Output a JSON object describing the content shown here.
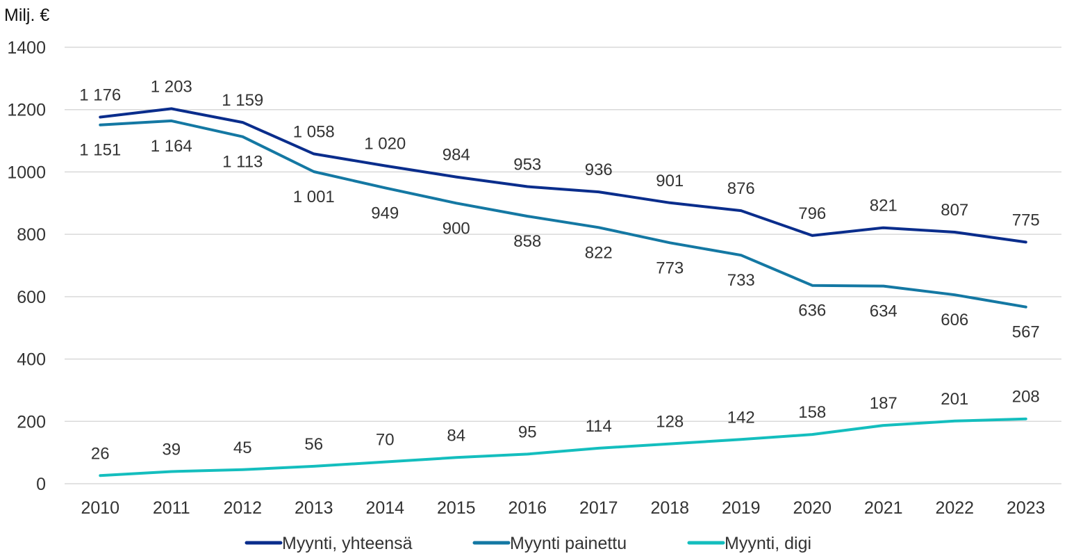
{
  "chart_data": {
    "type": "line",
    "unit_label": "Milj. €",
    "ylim": [
      0,
      1400
    ],
    "y_ticks": [
      0,
      200,
      400,
      600,
      800,
      1000,
      1200,
      1400
    ],
    "y_tick_labels": [
      "0",
      "200",
      "400",
      "600",
      "800",
      "1000",
      "1200",
      "1400"
    ],
    "categories": [
      "2010",
      "2011",
      "2012",
      "2013",
      "2014",
      "2015",
      "2016",
      "2017",
      "2018",
      "2019",
      "2020",
      "2021",
      "2022",
      "2023"
    ],
    "grid": true,
    "legend_position": "bottom",
    "series": [
      {
        "name": "Myynti, yhteensä",
        "color": "#0a2d8c",
        "label_position": "above",
        "values": [
          1176,
          1203,
          1159,
          1058,
          1020,
          984,
          953,
          936,
          901,
          876,
          796,
          821,
          807,
          775
        ],
        "labels": [
          "1 176",
          "1 203",
          "1 159",
          "1 058",
          "1 020",
          "984",
          "953",
          "936",
          "901",
          "876",
          "796",
          "821",
          "807",
          "775"
        ]
      },
      {
        "name": "Myynti painettu",
        "color": "#1478a3",
        "label_position": "below",
        "values": [
          1151,
          1164,
          1113,
          1001,
          949,
          900,
          858,
          822,
          773,
          733,
          636,
          634,
          606,
          567
        ],
        "labels": [
          "1 151",
          "1 164",
          "1 113",
          "1 001",
          "949",
          "900",
          "858",
          "822",
          "773",
          "733",
          "636",
          "634",
          "606",
          "567"
        ]
      },
      {
        "name": "Myynti, digi",
        "color": "#14bebe",
        "label_position": "above",
        "values": [
          26,
          39,
          45,
          56,
          70,
          84,
          95,
          114,
          128,
          142,
          158,
          187,
          201,
          208
        ],
        "labels": [
          "26",
          "39",
          "45",
          "56",
          "70",
          "84",
          "95",
          "114",
          "128",
          "142",
          "158",
          "187",
          "201",
          "208"
        ]
      }
    ]
  }
}
